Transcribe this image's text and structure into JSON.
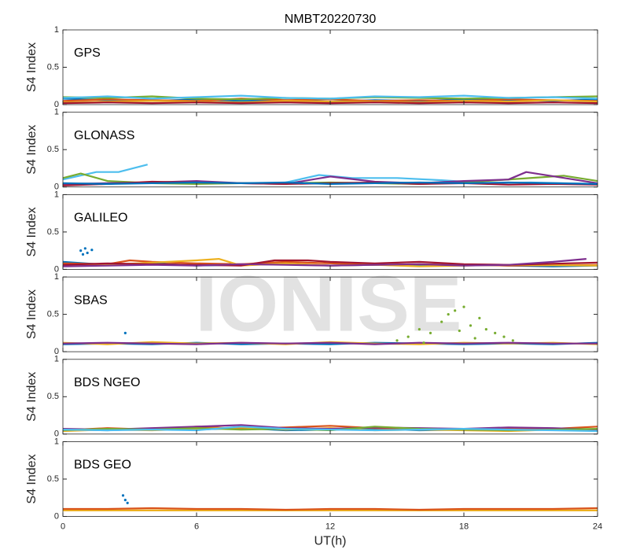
{
  "watermark": "IONISE",
  "chart_data": [
    {
      "type": "line",
      "title": "NMBT20220730",
      "panel_label": "GPS",
      "ylabel": "S4 Index",
      "xlim": [
        0,
        24
      ],
      "xticks": [
        0,
        6,
        12,
        18,
        24
      ],
      "ylim": [
        0,
        1
      ],
      "yticks": [
        0,
        0.5,
        1
      ],
      "show_xtick_labels": false,
      "series": [
        {
          "color": "#0072BD",
          "x": [
            0,
            2,
            4,
            6,
            8,
            10,
            12,
            14,
            16,
            18,
            20,
            22,
            24
          ],
          "values": [
            0.08,
            0.06,
            0.05,
            0.07,
            0.05,
            0.06,
            0.04,
            0.06,
            0.05,
            0.07,
            0.06,
            0.05,
            0.07
          ]
        },
        {
          "color": "#D95319",
          "x": [
            0,
            2,
            4,
            6,
            8,
            10,
            12,
            14,
            16,
            18,
            20,
            22,
            24
          ],
          "values": [
            0.05,
            0.07,
            0.06,
            0.05,
            0.08,
            0.06,
            0.07,
            0.05,
            0.06,
            0.05,
            0.07,
            0.06,
            0.05
          ]
        },
        {
          "color": "#EDB120",
          "x": [
            0,
            2,
            4,
            6,
            8,
            10,
            12,
            14,
            16,
            18,
            20,
            22,
            24
          ],
          "values": [
            0.03,
            0.04,
            0.05,
            0.04,
            0.03,
            0.05,
            0.04,
            0.04,
            0.03,
            0.05,
            0.04,
            0.06,
            0.04
          ]
        },
        {
          "color": "#77AC30",
          "x": [
            0,
            2,
            4,
            6,
            8,
            10,
            12,
            14,
            16,
            18,
            20,
            22,
            24
          ],
          "values": [
            0.1,
            0.09,
            0.11,
            0.08,
            0.07,
            0.09,
            0.08,
            0.1,
            0.09,
            0.08,
            0.09,
            0.1,
            0.11
          ]
        },
        {
          "color": "#4DBEEE",
          "x": [
            0,
            2,
            4,
            6,
            8,
            10,
            12,
            14,
            16,
            18,
            20,
            22,
            24
          ],
          "values": [
            0.09,
            0.11,
            0.08,
            0.1,
            0.12,
            0.09,
            0.08,
            0.11,
            0.1,
            0.12,
            0.09,
            0.1,
            0.08
          ]
        },
        {
          "color": "#A2142F",
          "x": [
            0,
            2,
            4,
            6,
            8,
            10,
            12,
            14,
            16,
            18,
            20,
            22,
            24
          ],
          "values": [
            0.02,
            0.03,
            0.02,
            0.03,
            0.02,
            0.03,
            0.02,
            0.03,
            0.02,
            0.03,
            0.02,
            0.03,
            0.02
          ]
        }
      ]
    },
    {
      "type": "line",
      "panel_label": "GLONASS",
      "ylabel": "S4 Index",
      "xlim": [
        0,
        24
      ],
      "xticks": [
        0,
        6,
        12,
        18,
        24
      ],
      "ylim": [
        0,
        1
      ],
      "yticks": [
        0,
        0.5,
        1
      ],
      "show_xtick_labels": false,
      "series": [
        {
          "color": "#4DBEEE",
          "x": [
            0,
            1.5,
            2.5,
            3.8,
            5,
            10,
            11.5,
            13,
            15,
            17,
            19,
            21,
            24
          ],
          "values": [
            0.1,
            0.2,
            0.2,
            0.3,
            null,
            0.06,
            0.16,
            0.12,
            0.12,
            0.09,
            0.05,
            0.06,
            0.04
          ]
        },
        {
          "color": "#77AC30",
          "x": [
            0,
            0.8,
            2,
            4,
            6,
            8,
            10,
            12,
            14,
            16,
            18,
            22.5,
            24
          ],
          "values": [
            0.12,
            0.18,
            0.08,
            0.05,
            0.04,
            0.05,
            0.05,
            0.06,
            0.05,
            0.04,
            0.06,
            0.15,
            0.08
          ]
        },
        {
          "color": "#7E2F8E",
          "x": [
            0,
            2,
            4,
            6,
            8,
            10,
            12,
            14,
            16,
            18,
            20,
            20.8,
            24
          ],
          "values": [
            0.04,
            0.05,
            0.06,
            0.08,
            0.05,
            0.04,
            0.14,
            0.07,
            0.05,
            0.08,
            0.1,
            0.2,
            0.05
          ]
        },
        {
          "color": "#A2142F",
          "x": [
            0,
            2,
            4,
            6,
            8,
            10,
            12,
            14,
            16,
            18,
            20,
            22,
            24
          ],
          "values": [
            0.02,
            0.04,
            0.07,
            0.06,
            0.05,
            0.04,
            0.05,
            0.06,
            0.04,
            0.05,
            0.03,
            0.04,
            0.03
          ]
        },
        {
          "color": "#0072BD",
          "x": [
            0,
            2,
            4,
            6,
            8,
            10,
            12,
            14,
            16,
            18,
            20,
            22,
            24
          ],
          "values": [
            0.05,
            0.04,
            0.05,
            0.06,
            0.05,
            0.06,
            0.04,
            0.05,
            0.06,
            0.05,
            0.06,
            0.05,
            0.04
          ]
        }
      ]
    },
    {
      "type": "line",
      "panel_label": "GALILEO",
      "ylabel": "S4 Index",
      "xlim": [
        0,
        24
      ],
      "xticks": [
        0,
        6,
        12,
        18,
        24
      ],
      "ylim": [
        0,
        1
      ],
      "yticks": [
        0,
        0.5,
        1
      ],
      "show_xtick_labels": false,
      "series": [
        {
          "color": "#0072BD",
          "x": [
            0,
            2,
            4,
            6,
            8,
            10,
            12,
            14,
            16,
            18,
            20,
            22,
            24
          ],
          "values": [
            0.1,
            0.06,
            0.08,
            0.05,
            0.06,
            0.07,
            0.05,
            0.06,
            0.05,
            0.06,
            0.05,
            0.04,
            0.05
          ]
        },
        {
          "color": "#D95319",
          "x": [
            0,
            2,
            3,
            4,
            6,
            8,
            10,
            12,
            14,
            16,
            18,
            20,
            24
          ],
          "values": [
            0.08,
            0.07,
            0.12,
            0.1,
            0.08,
            0.07,
            0.1,
            0.08,
            0.06,
            0.07,
            0.06,
            0.05,
            0.06
          ]
        },
        {
          "color": "#EDB120",
          "x": [
            0,
            2,
            4,
            6,
            7,
            8,
            10,
            12,
            14,
            16,
            18,
            20,
            24
          ],
          "values": [
            0.05,
            0.06,
            0.09,
            0.12,
            0.14,
            0.05,
            0.08,
            0.05,
            0.06,
            0.04,
            0.05,
            0.06,
            0.05
          ]
        },
        {
          "color": "#A2142F",
          "x": [
            0,
            2,
            4,
            6,
            8,
            9.5,
            11,
            12,
            14,
            16,
            18,
            20,
            24
          ],
          "values": [
            0.06,
            0.08,
            0.07,
            0.06,
            0.05,
            0.12,
            0.12,
            0.1,
            0.08,
            0.1,
            0.07,
            0.06,
            0.09
          ]
        },
        {
          "color": "#7E2F8E",
          "x": [
            0,
            2,
            4,
            6,
            8,
            10,
            12,
            14,
            16,
            18,
            20,
            22,
            23.5
          ],
          "values": [
            0.04,
            0.05,
            0.06,
            0.05,
            0.07,
            0.06,
            0.05,
            0.06,
            0.07,
            0.05,
            0.06,
            0.1,
            0.14
          ]
        },
        {
          "color": "#0072BD",
          "mode": "markers",
          "x": [
            0.8,
            1,
            0.9,
            1.1,
            1.3
          ],
          "values": [
            0.25,
            0.28,
            0.2,
            0.22,
            0.26
          ]
        }
      ]
    },
    {
      "type": "line",
      "panel_label": "SBAS",
      "ylabel": "S4 Index",
      "xlim": [
        0,
        24
      ],
      "xticks": [
        0,
        6,
        12,
        18,
        24
      ],
      "ylim": [
        0,
        1
      ],
      "yticks": [
        0,
        0.5,
        1
      ],
      "show_xtick_labels": false,
      "series": [
        {
          "color": "#0072BD",
          "x": [
            0,
            2,
            4,
            6,
            8,
            10,
            12,
            14,
            16,
            18,
            20,
            22,
            24
          ],
          "values": [
            0.1,
            0.11,
            0.1,
            0.12,
            0.1,
            0.11,
            0.1,
            0.12,
            0.11,
            0.1,
            0.11,
            0.1,
            0.12
          ]
        },
        {
          "color": "#EDB120",
          "x": [
            0,
            2,
            4,
            6,
            8,
            10,
            12,
            14,
            16,
            18,
            20,
            22,
            24
          ],
          "values": [
            0.12,
            0.1,
            0.13,
            0.11,
            0.12,
            0.1,
            0.13,
            0.11,
            0.1,
            0.12,
            0.11,
            0.12,
            0.1
          ]
        },
        {
          "color": "#7E2F8E",
          "x": [
            0,
            2,
            4,
            6,
            8,
            10,
            12,
            14,
            16,
            18,
            20,
            22,
            24
          ],
          "values": [
            0.11,
            0.12,
            0.11,
            0.1,
            0.12,
            0.11,
            0.12,
            0.1,
            0.12,
            0.11,
            0.12,
            0.11,
            0.11
          ]
        },
        {
          "color": "#77AC30",
          "mode": "markers",
          "x": [
            15,
            15.5,
            16,
            16.5,
            17,
            17.3,
            17.6,
            18,
            18.3,
            18.7,
            19,
            19.4,
            19.8,
            20.2,
            16.2,
            17.8,
            18.5
          ],
          "values": [
            0.15,
            0.2,
            0.3,
            0.25,
            0.4,
            0.5,
            0.55,
            0.6,
            0.35,
            0.45,
            0.3,
            0.25,
            0.2,
            0.15,
            0.12,
            0.28,
            0.18
          ]
        },
        {
          "color": "#0072BD",
          "mode": "markers",
          "x": [
            2.8
          ],
          "values": [
            0.25
          ]
        }
      ]
    },
    {
      "type": "line",
      "panel_label": "BDS NGEO",
      "ylabel": "S4 Index",
      "xlim": [
        0,
        24
      ],
      "xticks": [
        0,
        6,
        12,
        18,
        24
      ],
      "ylim": [
        0,
        1
      ],
      "yticks": [
        0,
        0.5,
        1
      ],
      "show_xtick_labels": false,
      "series": [
        {
          "color": "#0072BD",
          "x": [
            0,
            2,
            4,
            6,
            8,
            10,
            12,
            14,
            16,
            18,
            20,
            22,
            24
          ],
          "values": [
            0.06,
            0.05,
            0.07,
            0.06,
            0.08,
            0.05,
            0.06,
            0.07,
            0.05,
            0.06,
            0.05,
            0.07,
            0.06
          ]
        },
        {
          "color": "#D95319",
          "x": [
            0,
            2,
            4,
            6,
            8,
            10,
            12,
            14,
            16,
            18,
            20,
            22,
            24
          ],
          "values": [
            0.05,
            0.08,
            0.06,
            0.1,
            0.07,
            0.09,
            0.11,
            0.08,
            0.07,
            0.06,
            0.08,
            0.07,
            0.1
          ]
        },
        {
          "color": "#EDB120",
          "x": [
            0,
            2,
            4,
            6,
            8,
            10,
            12,
            14,
            16,
            18,
            20,
            22,
            24
          ],
          "values": [
            0.04,
            0.06,
            0.05,
            0.07,
            0.09,
            0.06,
            0.08,
            0.05,
            0.06,
            0.05,
            0.04,
            0.06,
            0.05
          ]
        },
        {
          "color": "#7E2F8E",
          "x": [
            0,
            2,
            4,
            6,
            8,
            10,
            12,
            14,
            16,
            18,
            20,
            22,
            24
          ],
          "values": [
            0.07,
            0.06,
            0.08,
            0.1,
            0.12,
            0.08,
            0.07,
            0.09,
            0.08,
            0.07,
            0.09,
            0.08,
            0.06
          ]
        },
        {
          "color": "#77AC30",
          "x": [
            0,
            2,
            4,
            6,
            8,
            10,
            12,
            14,
            16,
            18,
            20,
            22,
            24
          ],
          "values": [
            0.05,
            0.07,
            0.06,
            0.08,
            0.06,
            0.07,
            0.05,
            0.1,
            0.07,
            0.06,
            0.05,
            0.06,
            0.07
          ]
        },
        {
          "color": "#4DBEEE",
          "x": [
            0,
            2,
            4,
            6,
            8,
            10,
            12,
            14,
            16,
            18,
            20,
            22,
            24
          ],
          "values": [
            0.06,
            0.05,
            0.06,
            0.05,
            0.1,
            0.07,
            0.06,
            0.05,
            0.06,
            0.07,
            0.06,
            0.05,
            0.04
          ]
        }
      ]
    },
    {
      "type": "line",
      "panel_label": "BDS GEO",
      "ylabel": "S4 Index",
      "xlabel": "UT(h)",
      "xlim": [
        0,
        24
      ],
      "xticks": [
        0,
        6,
        12,
        18,
        24
      ],
      "ylim": [
        0,
        1
      ],
      "yticks": [
        0,
        0.5,
        1
      ],
      "show_xtick_labels": true,
      "series": [
        {
          "color": "#EDB120",
          "x": [
            0,
            2,
            4,
            6,
            8,
            10,
            12,
            14,
            16,
            18,
            20,
            22,
            24
          ],
          "values": [
            0.08,
            0.08,
            0.08,
            0.08,
            0.08,
            0.08,
            0.08,
            0.08,
            0.08,
            0.08,
            0.08,
            0.08,
            0.08
          ]
        },
        {
          "color": "#D95319",
          "x": [
            0,
            2,
            4,
            6,
            8,
            10,
            12,
            14,
            16,
            18,
            20,
            22,
            24
          ],
          "values": [
            0.1,
            0.1,
            0.11,
            0.1,
            0.1,
            0.09,
            0.1,
            0.1,
            0.09,
            0.1,
            0.1,
            0.1,
            0.11
          ]
        },
        {
          "color": "#0072BD",
          "mode": "markers",
          "x": [
            2.7,
            2.8,
            2.9
          ],
          "values": [
            0.28,
            0.22,
            0.18
          ]
        }
      ]
    }
  ]
}
